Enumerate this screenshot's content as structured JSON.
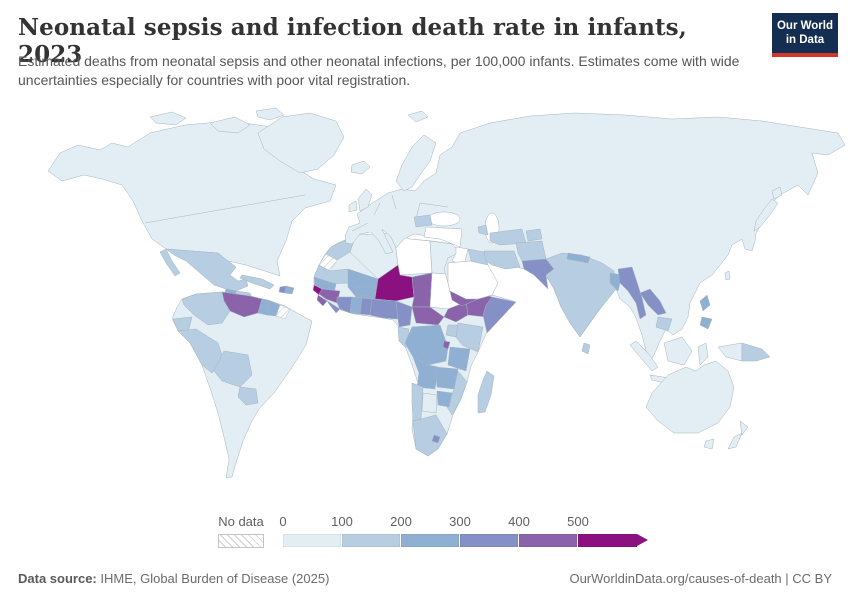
{
  "header": {
    "title": "Neonatal sepsis and infection death rate in infants, 2023",
    "subtitle": "Estimated deaths from neonatal sepsis and other neonatal infections, per 100,000 infants. Estimates come with wide uncertainties especially for countries with poor vital registration.",
    "logo_line1": "Our World",
    "logo_line2": "in Data",
    "logo_bg": "#142e52",
    "logo_accent": "#d2352b"
  },
  "legend": {
    "no_data_label": "No data",
    "ticks": [
      "0",
      "100",
      "200",
      "300",
      "400",
      "500"
    ]
  },
  "footer": {
    "source_label": "Data source:",
    "source_text": " IHME, Global Burden of Disease (2025)",
    "right_text": "OurWorldinData.org/causes-of-death | CC BY"
  },
  "chart_data": {
    "type": "choropleth",
    "title": "Neonatal sepsis and infection death rate in infants",
    "year": 2023,
    "unit": "estimated deaths per 100,000 infants",
    "legend_bins": [
      {
        "label": "0-100",
        "color": "#e2eef3"
      },
      {
        "label": "100-200",
        "color": "#b7cee2"
      },
      {
        "label": "200-300",
        "color": "#8fb0d2"
      },
      {
        "label": "300-400",
        "color": "#8590c6"
      },
      {
        "label": "400-500",
        "color": "#8a63ab"
      },
      {
        "label": "500+",
        "color": "#8c1180"
      }
    ],
    "bin_fills": {
      "0": "#ffffff",
      "0-100": "#e2eef3",
      "100-200": "#b7cee2",
      "200-300": "#8fb0d2",
      "300-400": "#8590c6",
      "400-500": "#8a63ab",
      "500+": "#8c1180",
      "no-data": "hatch"
    },
    "regions": {
      "canada": "0-100",
      "united-states": "0-100",
      "greenland": "0-100",
      "iceland": "0-100",
      "mexico": "100-200",
      "guatemala": "200-300",
      "honduras-nicaragua": "100-200",
      "costa-rica-panama": "100-200",
      "cuba": "100-200",
      "haiti": "300-400",
      "dominican-republic": "200-300",
      "venezuela": "400-500",
      "colombia": "100-200",
      "guyana": "200-300",
      "suriname": "200-300",
      "french-guiana": "no-data",
      "ecuador": "100-200",
      "peru": "100-200",
      "bolivia": "100-200",
      "paraguay": "100-200",
      "brazil": "0-100",
      "argentina": "0-100",
      "chile": "0-100",
      "uruguay": "0-100",
      "morocco": "100-200",
      "western-sahara": "no-data",
      "algeria": "0-100",
      "libya": "0",
      "egypt": "0-100",
      "sudan": "0",
      "mauritania": "100-200",
      "senegal": "200-300",
      "guinea-bissau": "500+",
      "guinea": "400-500",
      "sierra-leone": "400-500",
      "liberia": "300-400",
      "cote-divoire": "300-400",
      "ghana": "200-300",
      "togo-benin": "300-400",
      "burkina-faso": "200-300",
      "mali": "200-300",
      "niger": "500+",
      "nigeria": "300-400",
      "chad": "400-500",
      "eritrea": "100-200",
      "ethiopia": "400-500",
      "somalia": "300-400",
      "south-sudan": "400-500",
      "central-african-republic": "400-500",
      "cameroon": "300-400",
      "drc": "200-300",
      "congo-gabon": "100-200",
      "uganda": "100-200",
      "kenya": "100-200",
      "rwanda-burundi": "400-500",
      "tanzania": "200-300",
      "angola": "200-300",
      "zambia": "200-300",
      "mozambique": "100-200",
      "zimbabwe": "200-300",
      "botswana": "0-100",
      "namibia": "100-200",
      "south-africa": "100-200",
      "lesotho": "300-400",
      "madagascar": "100-200",
      "europe": "0-100",
      "romania": "100-200",
      "russia": "0-100",
      "turkey": "0",
      "levant": "0",
      "iraq": "100-200",
      "iran": "100-200",
      "saudi-arabia": "0",
      "yemen": "400-500",
      "azerbaijan": "100-200",
      "turkmenistan-uzbekistan": "100-200",
      "kyrgyzstan-tajikistan": "100-200",
      "kazakhstan": "0-100",
      "afghanistan": "100-200",
      "pakistan": "300-400",
      "india": "100-200",
      "nepal": "200-300",
      "bangladesh": "200-300",
      "sri-lanka": "100-200",
      "myanmar": "300-400",
      "laos": "300-400",
      "thailand": "0-100",
      "cambodia": "100-200",
      "vietnam": "0-100",
      "china": "0-100",
      "japan": "0-100",
      "philippines": "200-300",
      "indonesia": "0-100",
      "malaysia": "0-100",
      "papua-new-guinea": "100-200",
      "australia": "0-100",
      "new-zealand": "0-100"
    }
  }
}
